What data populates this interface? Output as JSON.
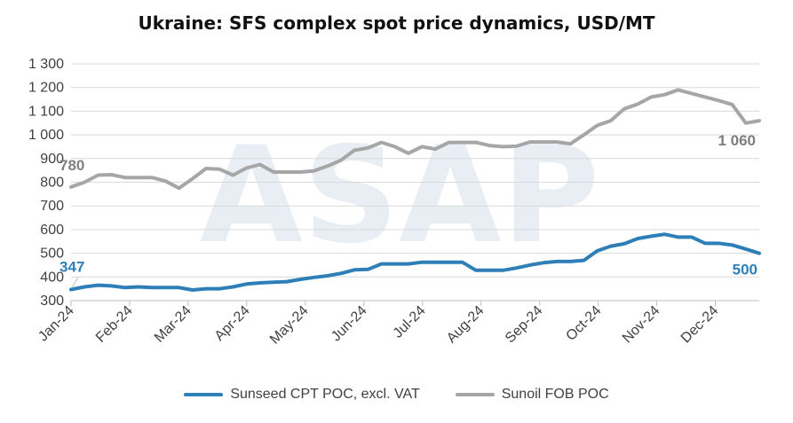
{
  "chart_data": {
    "type": "line",
    "title": "Ukraine: SFS complex spot price dynamics, USD/MT",
    "watermark": "ASAP",
    "ylim": [
      300,
      1300
    ],
    "yticks": [
      300,
      400,
      500,
      600,
      700,
      800,
      900,
      1000,
      1100,
      1200,
      1300
    ],
    "ytick_labels": [
      "300",
      "400",
      "500",
      "600",
      "700",
      "800",
      "900",
      "1 000",
      "1 100",
      "1 200",
      "1 300"
    ],
    "month_labels": [
      "Jan-24",
      "Feb-24",
      "Mar-24",
      "Apr-24",
      "May-24",
      "Jun-24",
      "Jul-24",
      "Aug-24",
      "Sep-24",
      "Oct-24",
      "Nov-24",
      "Dec-24"
    ],
    "grid": true,
    "legend_position": "bottom",
    "series": [
      {
        "name": "Sunseed CPT POC, excl. VAT",
        "color": "#2e7fb8",
        "values": [
          347,
          358,
          365,
          362,
          355,
          358,
          355,
          355,
          355,
          345,
          350,
          350,
          358,
          370,
          375,
          378,
          380,
          390,
          398,
          405,
          415,
          430,
          432,
          455,
          455,
          455,
          462,
          462,
          462,
          462,
          428,
          428,
          428,
          438,
          450,
          460,
          465,
          465,
          470,
          510,
          530,
          540,
          562,
          572,
          580,
          568,
          568,
          542,
          542,
          535,
          518,
          500
        ],
        "start_label": "347",
        "end_label": "500"
      },
      {
        "name": "Sunoil FOB POC",
        "color": "#a6a6a6",
        "values": [
          780,
          800,
          830,
          832,
          820,
          820,
          820,
          805,
          775,
          815,
          858,
          855,
          830,
          860,
          875,
          843,
          843,
          843,
          848,
          868,
          893,
          935,
          945,
          968,
          950,
          922,
          950,
          940,
          968,
          968,
          968,
          955,
          950,
          952,
          970,
          970,
          970,
          962,
          1000,
          1040,
          1060,
          1110,
          1130,
          1160,
          1170,
          1190,
          1175,
          1160,
          1145,
          1128,
          1050,
          1060
        ],
        "start_label": "780",
        "end_label": "1 060"
      }
    ]
  }
}
